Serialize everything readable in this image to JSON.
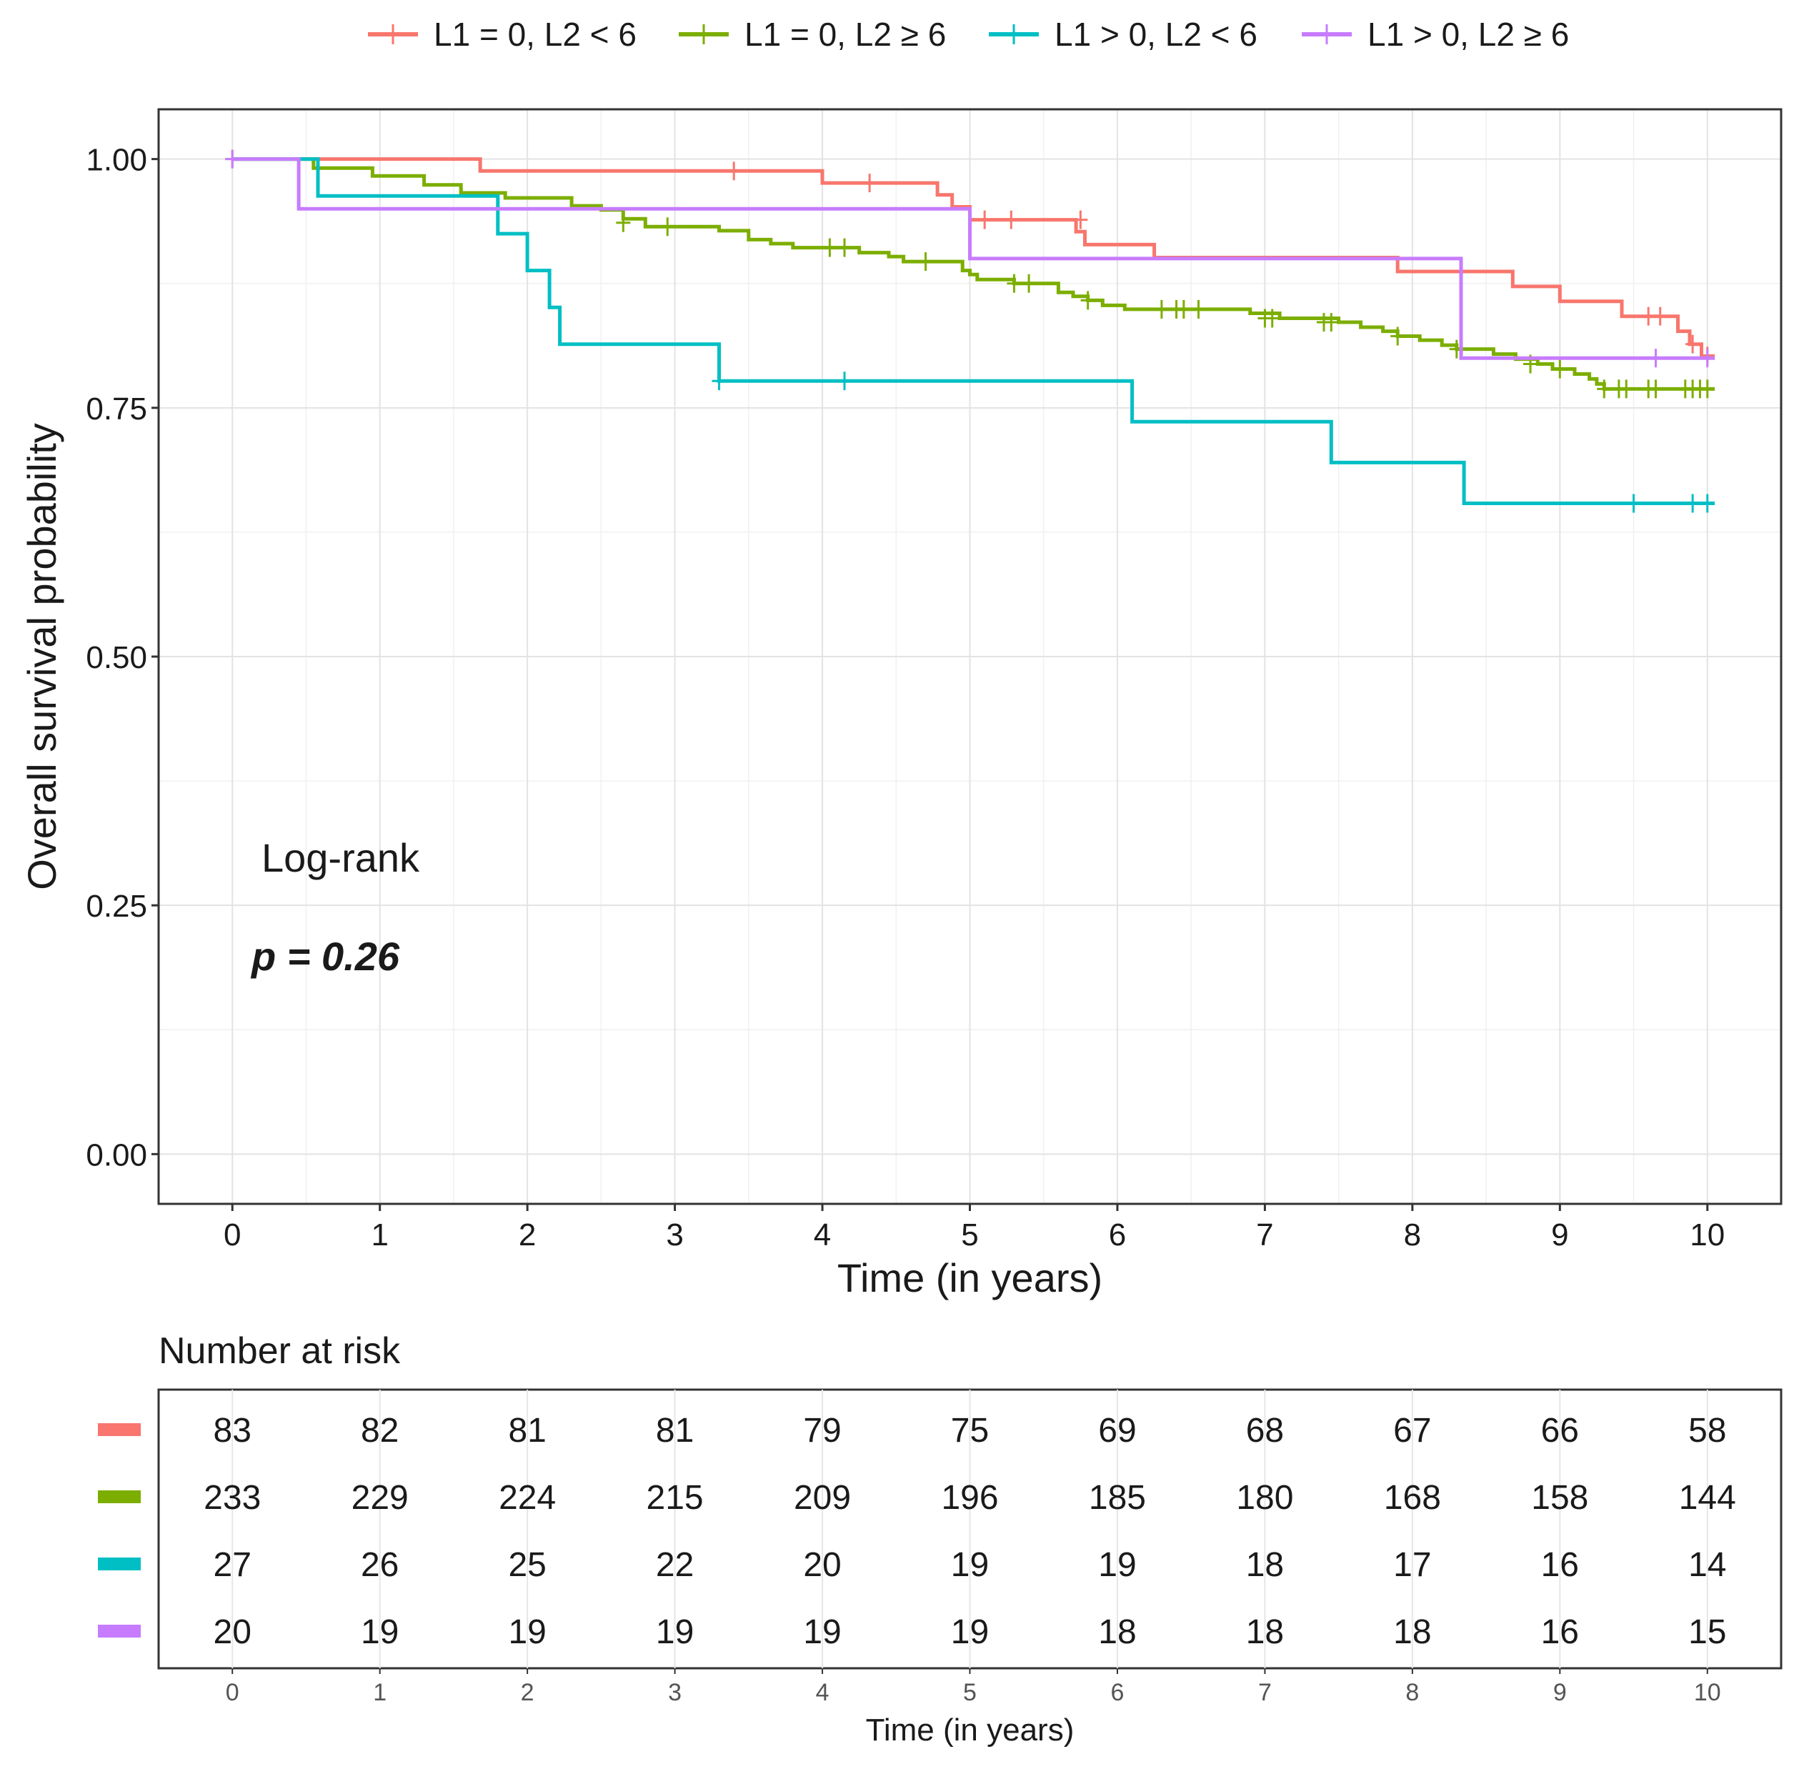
{
  "chart_data": {
    "type": "line",
    "subtype": "kaplan-meier",
    "title": "",
    "xlabel": "Time (in years)",
    "ylabel": "Overall survival probability",
    "xlim": [
      -0.5,
      10.5
    ],
    "ylim": [
      -0.05,
      1.05
    ],
    "x_ticks": [
      0,
      1,
      2,
      3,
      4,
      5,
      6,
      7,
      8,
      9,
      10
    ],
    "y_ticks": [
      0,
      0.25,
      0.5,
      0.75,
      1.0
    ],
    "y_tick_labels": [
      "0.00",
      "0.25",
      "0.50",
      "0.75",
      "1.00"
    ],
    "grid": true,
    "legend_position": "top",
    "annotations": {
      "test_label": "Log-rank",
      "p_value": "p = 0.26"
    },
    "series": [
      {
        "name": "L1 = 0, L2 < 6",
        "color": "#F8766D",
        "steps": [
          [
            0,
            1.0
          ],
          [
            1.68,
            0.988
          ],
          [
            4.0,
            0.976
          ],
          [
            4.78,
            0.964
          ],
          [
            4.88,
            0.952
          ],
          [
            5.0,
            0.939
          ],
          [
            5.72,
            0.927
          ],
          [
            5.78,
            0.914
          ],
          [
            6.25,
            0.901
          ],
          [
            7.9,
            0.887
          ],
          [
            8.68,
            0.872
          ],
          [
            9.0,
            0.857
          ],
          [
            9.42,
            0.842
          ],
          [
            9.8,
            0.827
          ],
          [
            9.88,
            0.814
          ],
          [
            9.96,
            0.802
          ],
          [
            10.05,
            0.802
          ]
        ],
        "censors": [
          [
            0,
            1.0
          ],
          [
            3.4,
            0.988
          ],
          [
            4.32,
            0.976
          ],
          [
            5.1,
            0.939
          ],
          [
            5.28,
            0.939
          ],
          [
            5.75,
            0.939
          ],
          [
            9.6,
            0.842
          ],
          [
            9.68,
            0.842
          ],
          [
            9.9,
            0.814
          ],
          [
            10.0,
            0.802
          ]
        ]
      },
      {
        "name": "L1 = 0, L2 ≥ 6",
        "color": "#7CAE00",
        "steps": [
          [
            0,
            1.0
          ],
          [
            0.55,
            0.991
          ],
          [
            0.95,
            0.983
          ],
          [
            1.3,
            0.974
          ],
          [
            1.55,
            0.966
          ],
          [
            1.85,
            0.961
          ],
          [
            2.3,
            0.953
          ],
          [
            2.5,
            0.949
          ],
          [
            2.65,
            0.94
          ],
          [
            2.8,
            0.932
          ],
          [
            3.3,
            0.928
          ],
          [
            3.5,
            0.919
          ],
          [
            3.65,
            0.915
          ],
          [
            3.8,
            0.911
          ],
          [
            4.25,
            0.906
          ],
          [
            4.45,
            0.902
          ],
          [
            4.55,
            0.897
          ],
          [
            4.95,
            0.888
          ],
          [
            5.0,
            0.884
          ],
          [
            5.05,
            0.879
          ],
          [
            5.3,
            0.875
          ],
          [
            5.6,
            0.866
          ],
          [
            5.7,
            0.862
          ],
          [
            5.8,
            0.858
          ],
          [
            5.9,
            0.853
          ],
          [
            6.05,
            0.849
          ],
          [
            6.9,
            0.845
          ],
          [
            7.1,
            0.84
          ],
          [
            7.5,
            0.836
          ],
          [
            7.65,
            0.831
          ],
          [
            7.8,
            0.827
          ],
          [
            7.9,
            0.822
          ],
          [
            8.05,
            0.818
          ],
          [
            8.2,
            0.813
          ],
          [
            8.3,
            0.809
          ],
          [
            8.55,
            0.804
          ],
          [
            8.7,
            0.799
          ],
          [
            8.85,
            0.794
          ],
          [
            8.95,
            0.789
          ],
          [
            9.1,
            0.784
          ],
          [
            9.2,
            0.779
          ],
          [
            9.25,
            0.774
          ],
          [
            9.3,
            0.769
          ],
          [
            10.05,
            0.769
          ]
        ],
        "censors": [
          [
            2.65,
            0.936
          ],
          [
            2.95,
            0.932
          ],
          [
            4.05,
            0.911
          ],
          [
            4.15,
            0.911
          ],
          [
            4.7,
            0.897
          ],
          [
            5.3,
            0.875
          ],
          [
            5.4,
            0.875
          ],
          [
            5.8,
            0.858
          ],
          [
            6.3,
            0.849
          ],
          [
            6.4,
            0.849
          ],
          [
            6.45,
            0.849
          ],
          [
            6.55,
            0.849
          ],
          [
            7.0,
            0.84
          ],
          [
            7.05,
            0.84
          ],
          [
            7.4,
            0.836
          ],
          [
            7.45,
            0.836
          ],
          [
            7.9,
            0.822
          ],
          [
            8.3,
            0.809
          ],
          [
            8.8,
            0.794
          ],
          [
            9.0,
            0.789
          ],
          [
            9.3,
            0.769
          ],
          [
            9.4,
            0.769
          ],
          [
            9.45,
            0.769
          ],
          [
            9.6,
            0.769
          ],
          [
            9.65,
            0.769
          ],
          [
            9.85,
            0.769
          ],
          [
            9.9,
            0.769
          ],
          [
            9.95,
            0.769
          ],
          [
            10.0,
            0.769
          ]
        ]
      },
      {
        "name": "L1 > 0, L2 < 6",
        "color": "#00BFC4",
        "steps": [
          [
            0,
            1.0
          ],
          [
            0.58,
            0.963
          ],
          [
            1.8,
            0.925
          ],
          [
            2.0,
            0.888
          ],
          [
            2.15,
            0.851
          ],
          [
            2.22,
            0.814
          ],
          [
            3.3,
            0.777
          ],
          [
            6.1,
            0.736
          ],
          [
            7.45,
            0.695
          ],
          [
            8.35,
            0.654
          ],
          [
            10.05,
            0.654
          ]
        ],
        "censors": [
          [
            3.3,
            0.777
          ],
          [
            4.15,
            0.777
          ],
          [
            9.5,
            0.654
          ],
          [
            9.9,
            0.654
          ],
          [
            10.0,
            0.654
          ]
        ]
      },
      {
        "name": "L1 > 0, L2 ≥ 6",
        "color": "#C77CFF",
        "steps": [
          [
            0,
            1.0
          ],
          [
            0.45,
            0.95
          ],
          [
            5.0,
            0.9
          ],
          [
            8.33,
            0.8
          ],
          [
            10.05,
            0.8
          ]
        ],
        "censors": [
          [
            0,
            1.0
          ],
          [
            9.65,
            0.8
          ],
          [
            10.0,
            0.8
          ]
        ]
      }
    ],
    "risk_table": {
      "title": "Number at risk",
      "xlabel": "Time (in years)",
      "times": [
        0,
        1,
        2,
        3,
        4,
        5,
        6,
        7,
        8,
        9,
        10
      ],
      "rows": [
        {
          "color": "#F8766D",
          "values": [
            "83",
            "82",
            "81",
            "81",
            "79",
            "75",
            "69",
            "68",
            "67",
            "66",
            "58"
          ]
        },
        {
          "color": "#7CAE00",
          "values": [
            "233",
            "229",
            "224",
            "215",
            "209",
            "196",
            "185",
            "180",
            "168",
            "158",
            "144"
          ]
        },
        {
          "color": "#00BFC4",
          "values": [
            "27",
            "26",
            "25",
            "22",
            "20",
            "19",
            "19",
            "18",
            "17",
            "16",
            "14"
          ]
        },
        {
          "color": "#C77CFF",
          "values": [
            "20",
            "19",
            "19",
            "19",
            "19",
            "19",
            "18",
            "18",
            "18",
            "16",
            "15"
          ]
        }
      ]
    }
  }
}
